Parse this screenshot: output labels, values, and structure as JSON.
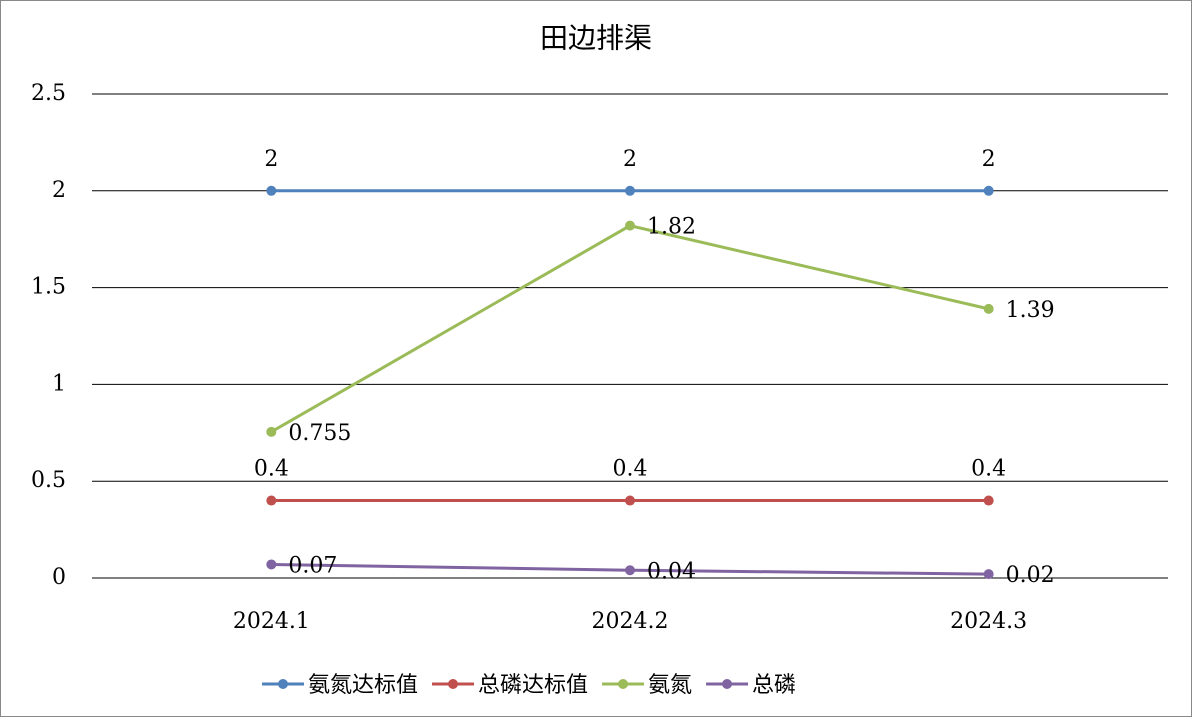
{
  "chart_data": {
    "type": "line",
    "title": "田边排渠",
    "categories": [
      "2024.1",
      "2024.2",
      "2024.3"
    ],
    "series": [
      {
        "name": "氨氮达标值",
        "color": "#4f81bd",
        "values": [
          2,
          2,
          2
        ],
        "label_position": "above"
      },
      {
        "name": "总磷达标值",
        "color": "#c0504d",
        "values": [
          0.4,
          0.4,
          0.4
        ],
        "label_position": "above"
      },
      {
        "name": "氨氮",
        "color": "#9bbb59",
        "values": [
          0.755,
          1.82,
          1.39
        ],
        "label_position": "right"
      },
      {
        "name": "总磷",
        "color": "#8064a2",
        "values": [
          0.07,
          0.04,
          0.02
        ],
        "label_position": "right"
      }
    ],
    "ylim": [
      0,
      2.5
    ],
    "yticks": [
      0,
      0.5,
      1,
      1.5,
      2,
      2.5
    ],
    "grid": true,
    "legend": "bottom"
  }
}
